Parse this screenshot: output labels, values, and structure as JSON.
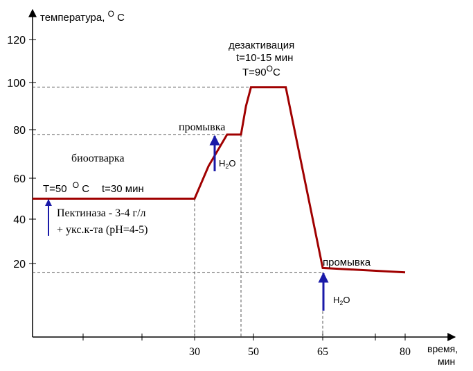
{
  "chart_data": {
    "type": "line",
    "ylabel": "температура,",
    "ylabel_unit": "°C",
    "xlabel_line1": "время,",
    "xlabel_line2": "мин",
    "y_ticks": [
      20,
      40,
      60,
      80,
      100,
      120
    ],
    "y_tick_labels": [
      "20",
      "40",
      "60",
      "80",
      "100",
      "120"
    ],
    "x_ticks": [
      30,
      50,
      65,
      80
    ],
    "x_tick_labels": [
      "30",
      "50",
      "65",
      "80"
    ],
    "ylim": [
      0,
      130
    ],
    "xlim": [
      0,
      90
    ],
    "grid": false,
    "series": [
      {
        "color": "#a00000",
        "x": [
          0,
          30,
          33,
          37,
          40,
          44,
          48,
          57,
          65,
          80
        ],
        "y": [
          50,
          50,
          65,
          78,
          78,
          90,
          98,
          98,
          18,
          16
        ]
      }
    ],
    "reference_lines": [
      {
        "y": 98
      },
      {
        "y": 78
      },
      {
        "y": 16
      },
      {
        "x": 30
      },
      {
        "x": 40
      },
      {
        "x": 65
      }
    ],
    "annotations": {
      "biootvarka": "биоотварка",
      "stage1_T": "T=50",
      "stage1_unit": "C",
      "stage1_time": "t=30 мин",
      "enzyme_line1": "Пектиназа - 3-4 г/л",
      "enzyme_line2": "+ укс.к-та (pH=4-5)",
      "wash1": "промывка",
      "water1": "H",
      "water1_sub": "2",
      "water1_tail": "O",
      "deact_title": "дезактивация",
      "deact_time": "t=10-15 мин",
      "deact_T": "T=90",
      "deact_unit": "C",
      "wash2": "промывка",
      "water2": "H",
      "water2_sub": "2",
      "water2_tail": "O",
      "degree_sup": "O"
    },
    "colors": {
      "line": "#a00000",
      "arrow": "#1a1aa8",
      "axis": "#000000",
      "dashed": "#555555"
    }
  }
}
